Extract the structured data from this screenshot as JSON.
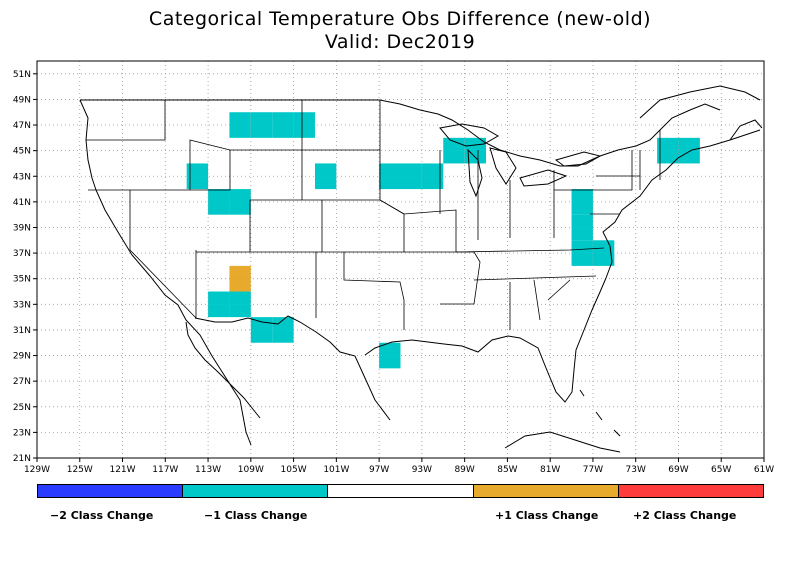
{
  "title": "Categorical Temperature Obs Difference (new-old)",
  "subtitle": "Valid: Dec2019",
  "map": {
    "lon_range": [
      -129,
      -61
    ],
    "lat_range": [
      21,
      52
    ],
    "lon_ticks": [
      {
        "value": -129,
        "label": "129W"
      },
      {
        "value": -125,
        "label": "125W"
      },
      {
        "value": -121,
        "label": "121W"
      },
      {
        "value": -117,
        "label": "117W"
      },
      {
        "value": -113,
        "label": "113W"
      },
      {
        "value": -109,
        "label": "109W"
      },
      {
        "value": -105,
        "label": "105W"
      },
      {
        "value": -101,
        "label": "101W"
      },
      {
        "value": -97,
        "label": "97W"
      },
      {
        "value": -93,
        "label": "93W"
      },
      {
        "value": -89,
        "label": "89W"
      },
      {
        "value": -85,
        "label": "85W"
      },
      {
        "value": -81,
        "label": "81W"
      },
      {
        "value": -77,
        "label": "77W"
      },
      {
        "value": -73,
        "label": "73W"
      },
      {
        "value": -69,
        "label": "69W"
      },
      {
        "value": -65,
        "label": "65W"
      },
      {
        "value": -61,
        "label": "61W"
      }
    ],
    "lat_ticks": [
      {
        "value": 21,
        "label": "21N"
      },
      {
        "value": 23,
        "label": "23N"
      },
      {
        "value": 25,
        "label": "25N"
      },
      {
        "value": 27,
        "label": "27N"
      },
      {
        "value": 29,
        "label": "29N"
      },
      {
        "value": 31,
        "label": "31N"
      },
      {
        "value": 33,
        "label": "33N"
      },
      {
        "value": 35,
        "label": "35N"
      },
      {
        "value": 37,
        "label": "37N"
      },
      {
        "value": 39,
        "label": "39N"
      },
      {
        "value": 41,
        "label": "41N"
      },
      {
        "value": 43,
        "label": "43N"
      },
      {
        "value": 45,
        "label": "45N"
      },
      {
        "value": 47,
        "label": "47N"
      },
      {
        "value": 49,
        "label": "49N"
      },
      {
        "value": 51,
        "label": "51N"
      }
    ],
    "grid": true,
    "cell_size_deg": 2,
    "cells": [
      {
        "lon": -110,
        "lat": 47,
        "class": -1
      },
      {
        "lon": -108,
        "lat": 47,
        "class": -1
      },
      {
        "lon": -106,
        "lat": 47,
        "class": -1
      },
      {
        "lon": -104,
        "lat": 47,
        "class": -1
      },
      {
        "lon": -114,
        "lat": 43,
        "class": -1
      },
      {
        "lon": -112,
        "lat": 41,
        "class": -1
      },
      {
        "lon": -110,
        "lat": 41,
        "class": -1
      },
      {
        "lon": -102,
        "lat": 43,
        "class": -1
      },
      {
        "lon": -96,
        "lat": 43,
        "class": -1
      },
      {
        "lon": -94,
        "lat": 43,
        "class": -1
      },
      {
        "lon": -92,
        "lat": 43,
        "class": -1
      },
      {
        "lon": -90,
        "lat": 45,
        "class": -1
      },
      {
        "lon": -88,
        "lat": 45,
        "class": -1
      },
      {
        "lon": -78,
        "lat": 41,
        "class": -1
      },
      {
        "lon": -78,
        "lat": 39,
        "class": -1
      },
      {
        "lon": -78,
        "lat": 37,
        "class": -1
      },
      {
        "lon": -76,
        "lat": 37,
        "class": -1
      },
      {
        "lon": -70,
        "lat": 45,
        "class": -1
      },
      {
        "lon": -68,
        "lat": 45,
        "class": -1
      },
      {
        "lon": -110,
        "lat": 35,
        "class": 1
      },
      {
        "lon": -112,
        "lat": 33,
        "class": -1
      },
      {
        "lon": -110,
        "lat": 33,
        "class": -1
      },
      {
        "lon": -108,
        "lat": 31,
        "class": -1
      },
      {
        "lon": -106,
        "lat": 31,
        "class": -1
      },
      {
        "lon": -96,
        "lat": 29,
        "class": -1
      }
    ]
  },
  "legend": {
    "colors": {
      "-2": "#2a3cff",
      "-1": "#00c8c8",
      "0": "#ffffff",
      "1": "#e8aa2c",
      "2": "#ff3c3c"
    },
    "labels": {
      "minus2": "−2 Class Change",
      "minus1": "−1 Class Change",
      "plus1": "+1 Class Change",
      "plus2": "+2 Class Change"
    }
  }
}
